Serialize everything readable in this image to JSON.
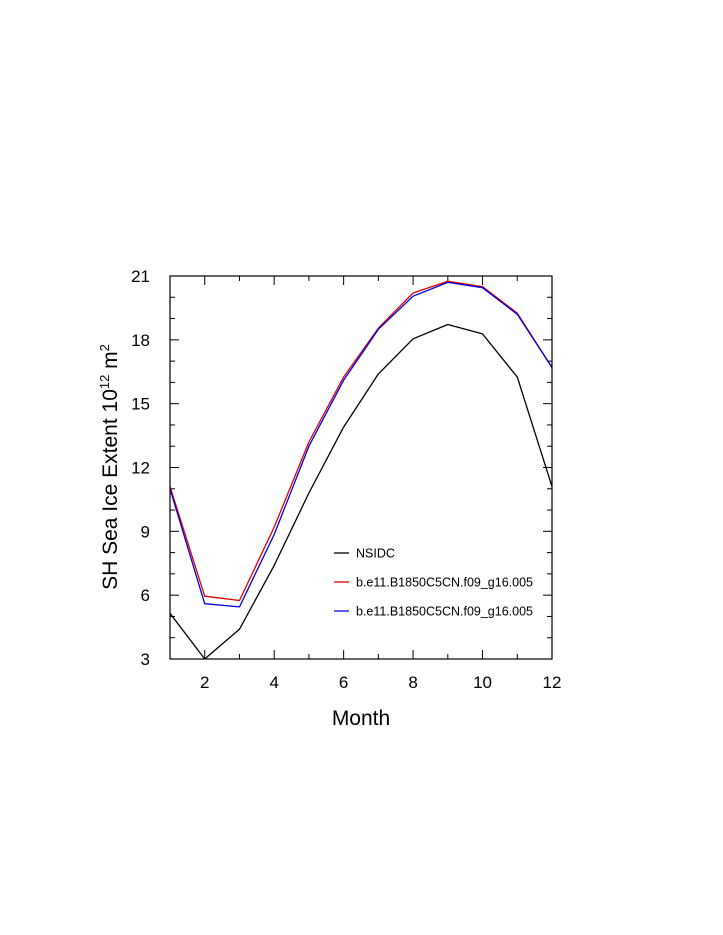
{
  "chart_data": {
    "type": "line",
    "title": "",
    "xlabel": "Month",
    "ylabel": "SH Sea Ice Extent 10",
    "ylabel_exponent": "12",
    "ylabel_unit": " m",
    "ylabel_unit_exponent": "2",
    "xlim": [
      1,
      12
    ],
    "ylim": [
      3,
      21
    ],
    "x_ticks": [
      2,
      4,
      6,
      8,
      10,
      12
    ],
    "y_ticks": [
      3,
      6,
      9,
      12,
      15,
      18,
      21
    ],
    "x": [
      1,
      2,
      3,
      4,
      5,
      6,
      7,
      8,
      9,
      10,
      11,
      12
    ],
    "legend_position": "center-right",
    "series": [
      {
        "name": "NSIDC",
        "color": "#000000",
        "values": [
          5.15,
          3.0,
          4.4,
          7.4,
          10.8,
          13.9,
          16.4,
          18.05,
          18.72,
          18.28,
          16.25,
          11.1
        ]
      },
      {
        "name": "b.e11.B1850C5CN.f09_g16.005",
        "color": "#e00000",
        "values": [
          11.1,
          5.95,
          5.75,
          9.2,
          13.2,
          16.25,
          18.55,
          20.2,
          20.75,
          20.5,
          19.25,
          16.7
        ]
      },
      {
        "name": "b.e11.B1850C5CN.f09_g16.005",
        "color": "#0000e0",
        "values": [
          11.0,
          5.6,
          5.45,
          8.85,
          13.0,
          16.1,
          18.5,
          20.05,
          20.7,
          20.45,
          19.2,
          16.7
        ]
      }
    ]
  }
}
